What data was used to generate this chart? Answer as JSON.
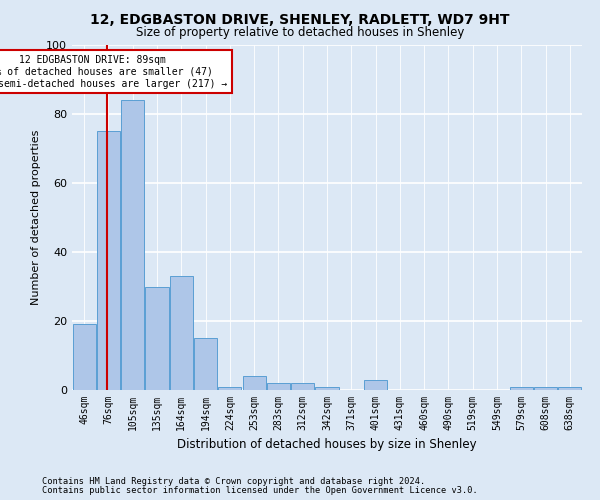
{
  "title_line1": "12, EDGBASTON DRIVE, SHENLEY, RADLETT, WD7 9HT",
  "title_line2": "Size of property relative to detached houses in Shenley",
  "xlabel": "Distribution of detached houses by size in Shenley",
  "ylabel": "Number of detached properties",
  "bin_labels": [
    "46sqm",
    "76sqm",
    "105sqm",
    "135sqm",
    "164sqm",
    "194sqm",
    "224sqm",
    "253sqm",
    "283sqm",
    "312sqm",
    "342sqm",
    "371sqm",
    "401sqm",
    "431sqm",
    "460sqm",
    "490sqm",
    "519sqm",
    "549sqm",
    "579sqm",
    "608sqm",
    "638sqm"
  ],
  "bar_heights": [
    19,
    75,
    84,
    30,
    33,
    15,
    1,
    4,
    2,
    2,
    1,
    0,
    3,
    0,
    0,
    0,
    0,
    0,
    1,
    1,
    1
  ],
  "bar_color": "#aec6e8",
  "bar_edge_color": "#5a9fd4",
  "property_value": 89,
  "red_line_color": "#cc0000",
  "annotation_box_color": "#ffffff",
  "annotation_box_edge": "#cc0000",
  "ylim": [
    0,
    100
  ],
  "footnote1": "Contains HM Land Registry data © Crown copyright and database right 2024.",
  "footnote2": "Contains public sector information licensed under the Open Government Licence v3.0.",
  "bg_color": "#dce8f5"
}
